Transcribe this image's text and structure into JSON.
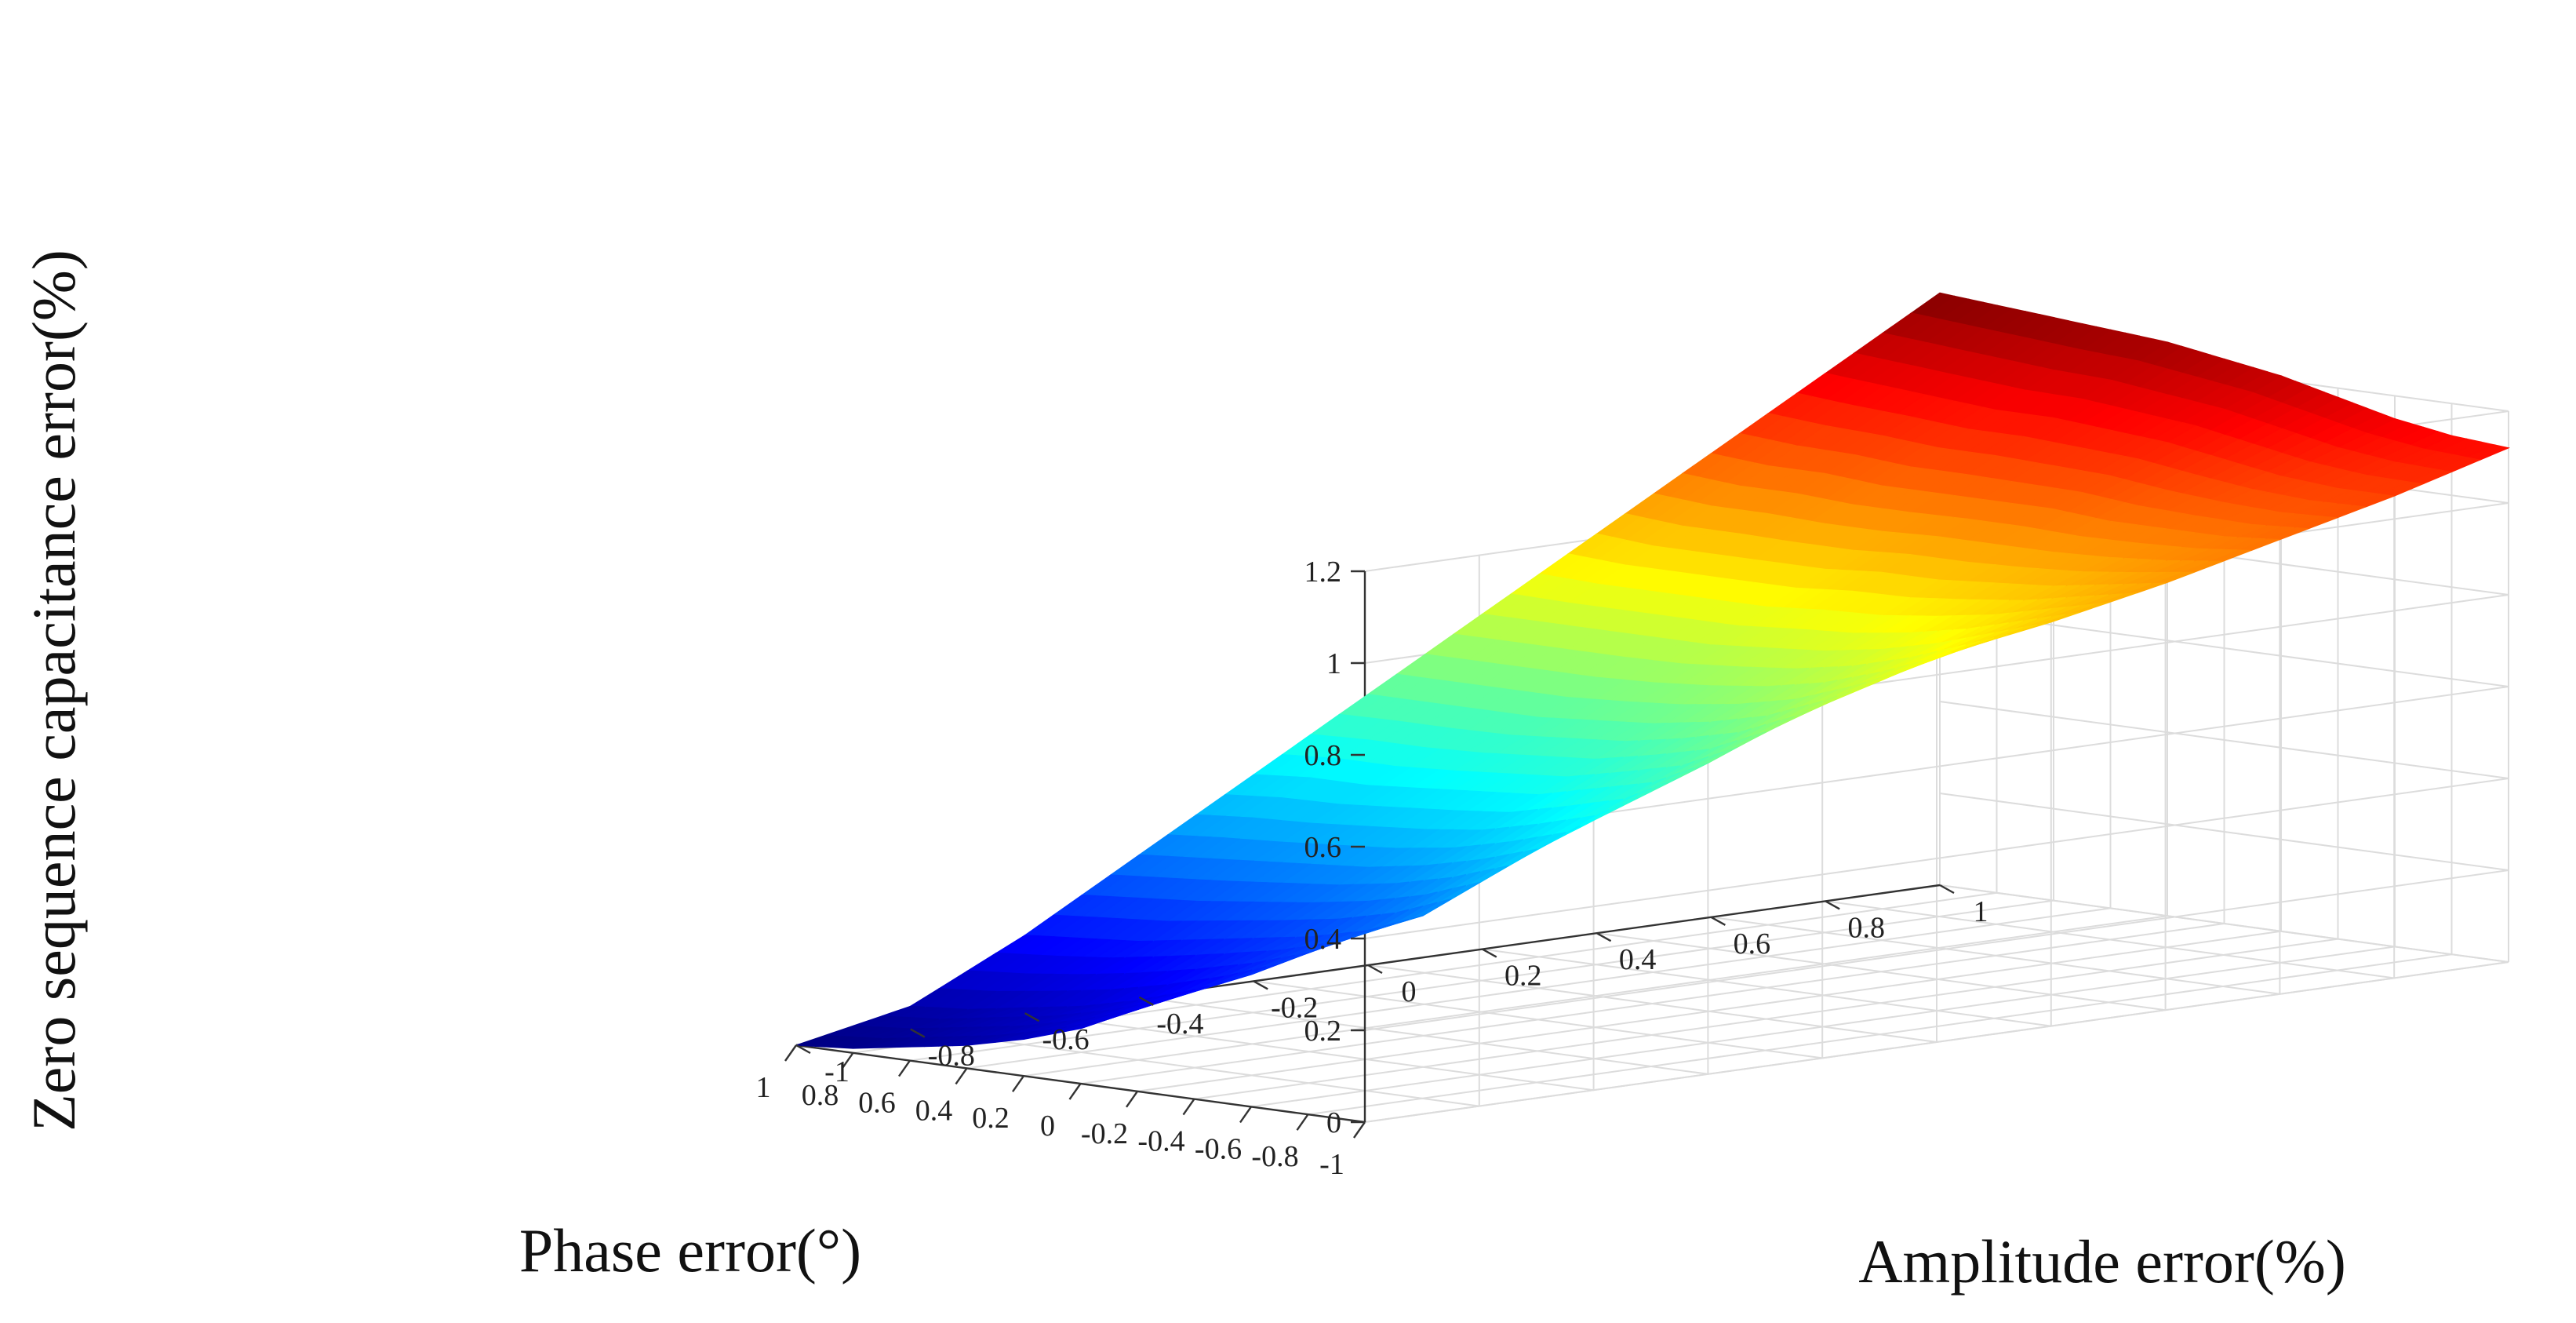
{
  "chart_data": {
    "type": "surface",
    "title": "",
    "xlabel": "Phase error(°)",
    "ylabel": "Amplitude error(%)",
    "zlabel": "Zero sequence capacitance error(%)",
    "x_ticks": [
      "-1",
      "-0.8",
      "-0.6",
      "-0.4",
      "-0.2",
      "0",
      "0.2",
      "0.4",
      "0.6",
      "0.8",
      "1"
    ],
    "y_ticks": [
      "-1",
      "-0.8",
      "-0.6",
      "-0.4",
      "-0.2",
      "0",
      "0.2",
      "0.4",
      "0.6",
      "0.8",
      "1"
    ],
    "z_ticks": [
      "0",
      "0.2",
      "0.4",
      "0.6",
      "0.8",
      "1",
      "1.2"
    ],
    "xlim": [
      -1,
      1
    ],
    "ylim": [
      -1,
      1
    ],
    "zlim": [
      0,
      1.2
    ],
    "grid": true,
    "colormap": "jet",
    "x": [
      -1,
      -0.8,
      -0.6,
      -0.4,
      -0.2,
      0,
      0.2,
      0.4,
      0.6,
      0.8,
      1
    ],
    "y": [
      -1,
      -0.8,
      -0.6,
      -0.4,
      -0.2,
      0,
      0.2,
      0.4,
      0.6,
      0.8,
      1
    ],
    "z_rows_by_y": [
      [
        0.74,
        0.53,
        0.35,
        0.25,
        0.18,
        0.12,
        0.08,
        0.05,
        0.03,
        0.01,
        0.0
      ],
      [
        0.74,
        0.56,
        0.4,
        0.29,
        0.22,
        0.17,
        0.13,
        0.1,
        0.08,
        0.06,
        0.05
      ],
      [
        0.75,
        0.58,
        0.44,
        0.33,
        0.28,
        0.25,
        0.23,
        0.21,
        0.19,
        0.18,
        0.17
      ],
      [
        0.77,
        0.63,
        0.52,
        0.44,
        0.4,
        0.37,
        0.35,
        0.34,
        0.33,
        0.32,
        0.31
      ],
      [
        0.8,
        0.7,
        0.61,
        0.55,
        0.52,
        0.49,
        0.48,
        0.47,
        0.46,
        0.46,
        0.45
      ],
      [
        0.84,
        0.77,
        0.71,
        0.66,
        0.63,
        0.61,
        0.6,
        0.59,
        0.59,
        0.59,
        0.59
      ],
      [
        0.88,
        0.84,
        0.8,
        0.77,
        0.75,
        0.74,
        0.73,
        0.73,
        0.73,
        0.73,
        0.73
      ],
      [
        0.93,
        0.91,
        0.89,
        0.88,
        0.87,
        0.87,
        0.86,
        0.86,
        0.86,
        0.86,
        0.87
      ],
      [
        0.99,
        0.98,
        0.98,
        0.98,
        0.99,
        0.99,
        0.99,
        0.99,
        1.0,
        1.0,
        1.01
      ],
      [
        1.05,
        1.05,
        1.06,
        1.08,
        1.1,
        1.11,
        1.12,
        1.12,
        1.13,
        1.14,
        1.15
      ],
      [
        1.12,
        1.13,
        1.15,
        1.18,
        1.21,
        1.23,
        1.25,
        1.26,
        1.27,
        1.28,
        1.29
      ]
    ]
  }
}
